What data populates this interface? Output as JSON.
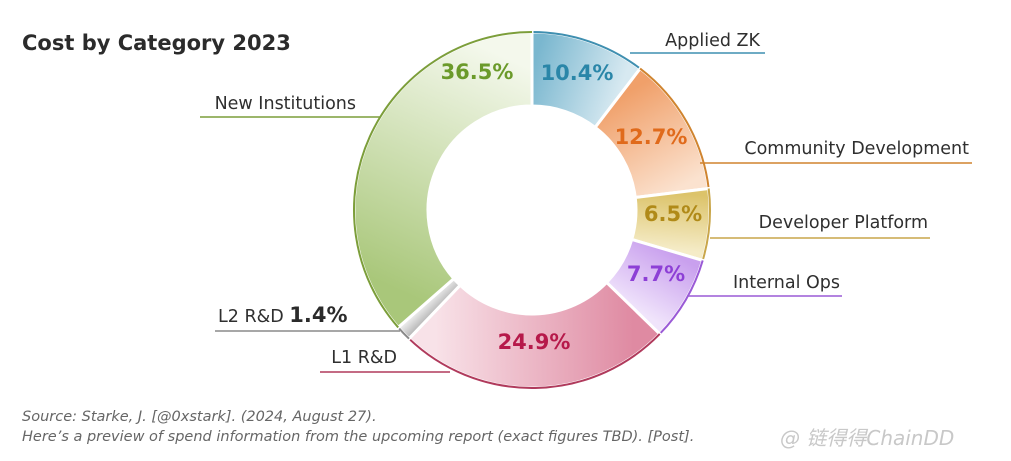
{
  "chart_data": {
    "type": "donut",
    "title": "Cost by Category 2023",
    "slices": [
      {
        "name": "Applied ZK",
        "value": 10.4,
        "label": "10.4%",
        "color": "#2a86a8",
        "line": "#3f8fb0",
        "fill_from": "#7ab7cf",
        "fill_to": "#d7e9f1"
      },
      {
        "name": "Community Development",
        "value": 12.7,
        "label": "12.7%",
        "color": "#e06a1b",
        "line": "#d0842f",
        "fill_from": "#f0a06a",
        "fill_to": "#fbe2cf"
      },
      {
        "name": "Developer Platform",
        "value": 6.5,
        "label": "6.5%",
        "color": "#b08a18",
        "line": "#c9a64a",
        "fill_from": "#dcc36a",
        "fill_to": "#f5ecc8"
      },
      {
        "name": "Internal Ops",
        "value": 7.7,
        "label": "7.7%",
        "color": "#8d3fd6",
        "line": "#9a5ad6",
        "fill_from": "#c9a0ee",
        "fill_to": "#f0e4fb"
      },
      {
        "name": "L1 R&D",
        "value": 24.9,
        "label": "24.9%",
        "color": "#b6194a",
        "line": "#b03a5c",
        "fill_from": "#df8aa2",
        "fill_to": "#f8e2e8"
      },
      {
        "name": "L2 R&D",
        "value": 1.4,
        "label": "1.4%",
        "color": "#2b2b2b",
        "line": "#8a8a8a",
        "fill_from": "#b8b8b8",
        "fill_to": "#ececec"
      },
      {
        "name": "New Institutions",
        "value": 36.5,
        "label": "36.5%",
        "color": "#6b9a2a",
        "line": "#7c9e3a",
        "fill_from": "#a9c77a",
        "fill_to": "#f4f8ec"
      }
    ]
  },
  "source": {
    "line1": "Source: Starke, J. [@0xstark]. (2024, August 27).",
    "line2": "Here’s a preview of spend information from the upcoming report (exact figures TBD). [Post]."
  },
  "watermark": {
    "icon": "chain-logo-icon",
    "text": "@ 链得得ChainDD"
  }
}
